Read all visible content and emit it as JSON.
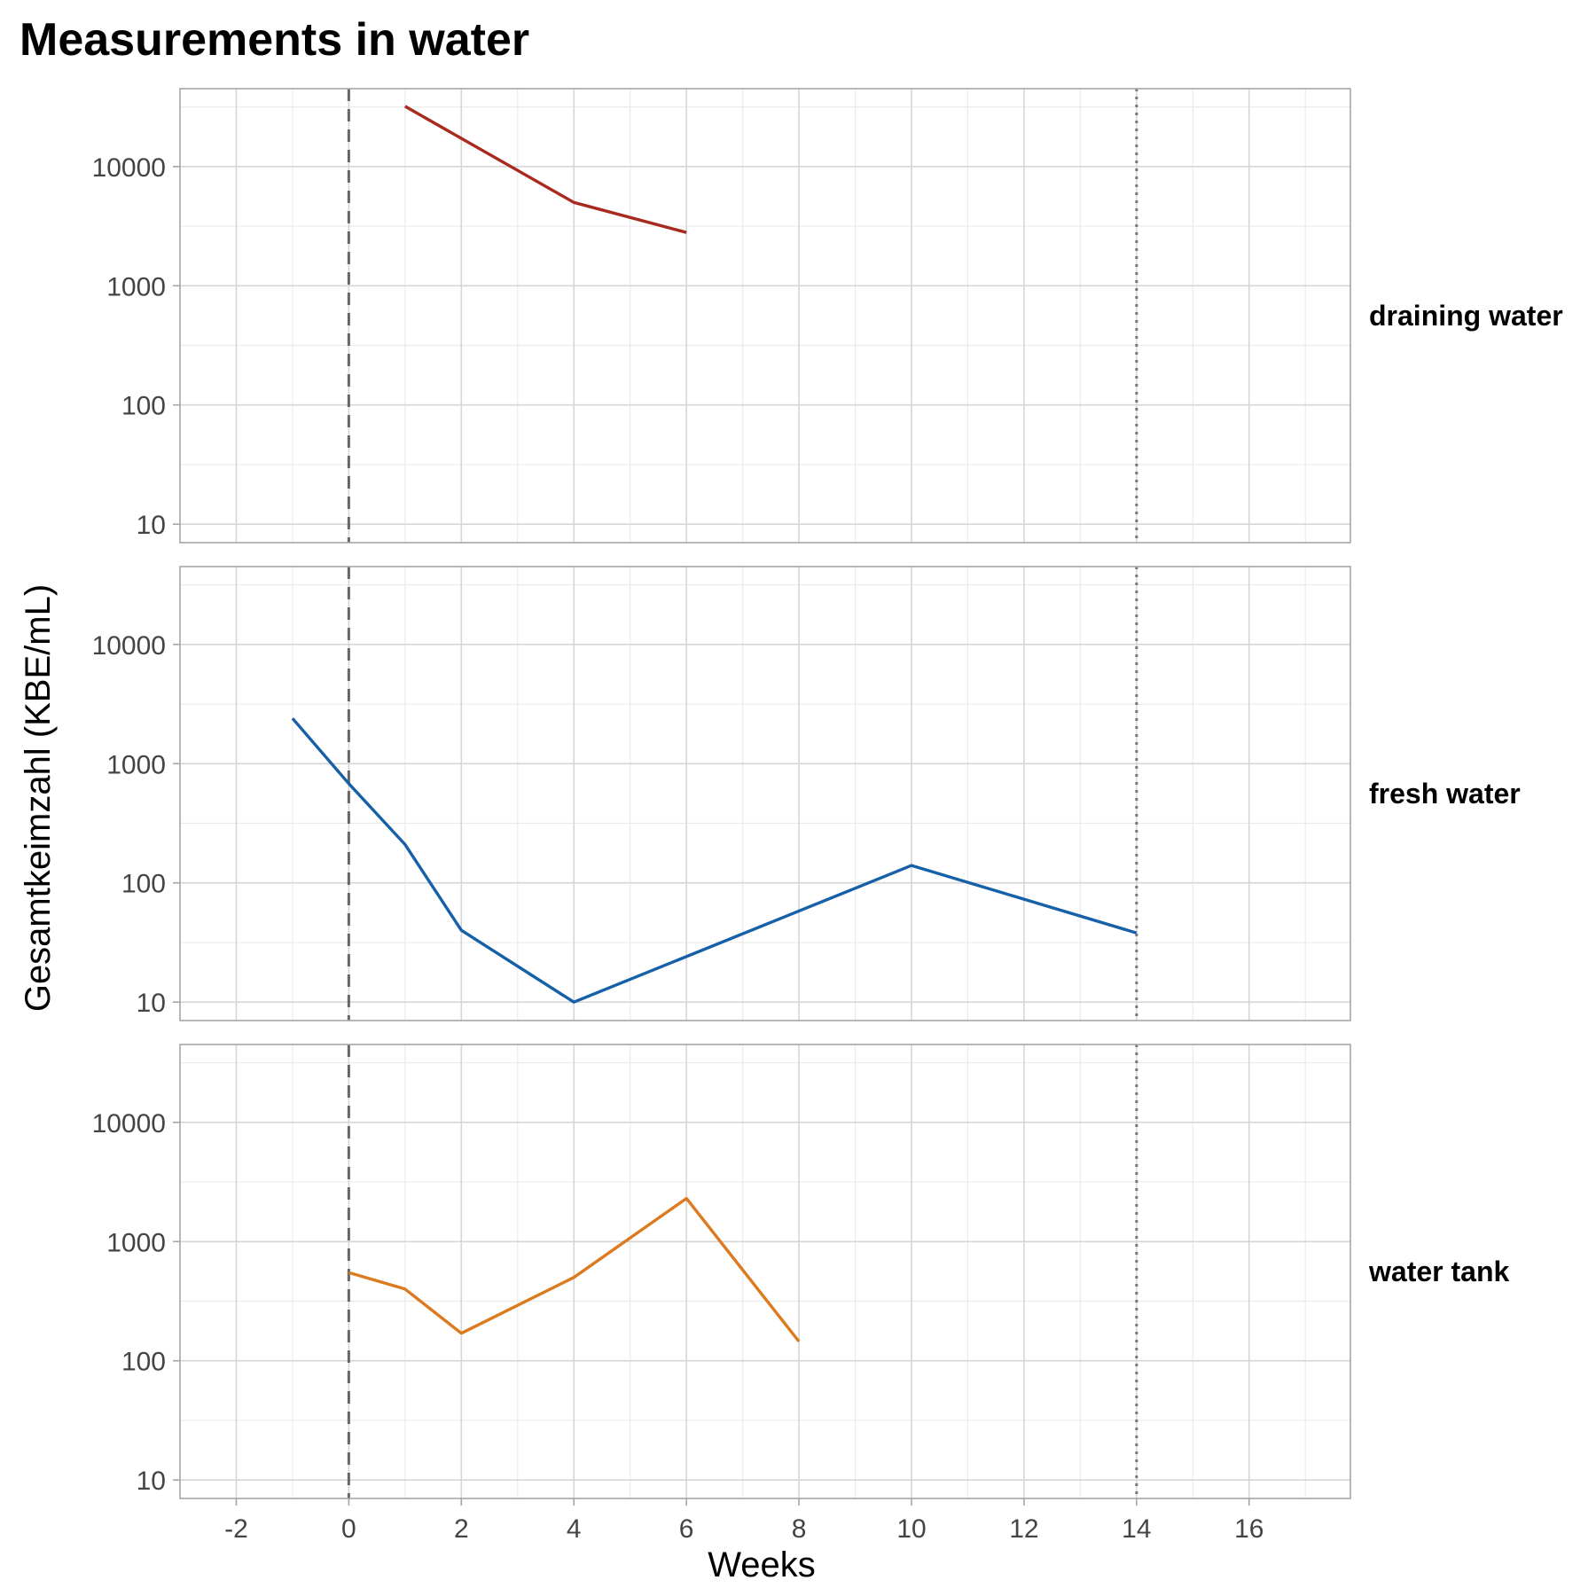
{
  "chart_data": {
    "type": "line",
    "title": "Measurements in water",
    "xlabel": "Weeks",
    "ylabel": "Gesamtkeimzahl (KBE/mL)",
    "x_scale": "linear",
    "y_scale": "log10",
    "xlim": [
      -3,
      17.8
    ],
    "ylim": [
      7,
      45000
    ],
    "x_ticks": [
      -2,
      0,
      2,
      4,
      6,
      8,
      10,
      12,
      14,
      16
    ],
    "x_tick_labels": [
      "-2",
      "0",
      "2",
      "4",
      "6",
      "8",
      "10",
      "12",
      "14",
      "16"
    ],
    "y_ticks": [
      10,
      100,
      1000,
      10000
    ],
    "y_tick_labels": [
      "10",
      "100",
      "1000",
      "10000"
    ],
    "grid": true,
    "facet_layout": "rows, strip labels on right",
    "reference_lines": [
      {
        "x": 0,
        "style": "dashed",
        "color": "#666666"
      },
      {
        "x": 14,
        "style": "dotted",
        "color": "#777777"
      }
    ],
    "panels": [
      {
        "label": "draining water",
        "color": "#A8291E",
        "points": [
          {
            "x": 1,
            "y": 32000
          },
          {
            "x": 4,
            "y": 5000
          },
          {
            "x": 6,
            "y": 2800
          }
        ]
      },
      {
        "label": "fresh water",
        "color": "#1660A8",
        "points": [
          {
            "x": -1,
            "y": 2400
          },
          {
            "x": 0,
            "y": 680
          },
          {
            "x": 1,
            "y": 210
          },
          {
            "x": 2,
            "y": 40
          },
          {
            "x": 4,
            "y": 10
          },
          {
            "x": 10,
            "y": 140
          },
          {
            "x": 14,
            "y": 38
          }
        ]
      },
      {
        "label": "water tank",
        "color": "#DC7A1F",
        "points": [
          {
            "x": 0,
            "y": 550
          },
          {
            "x": 1,
            "y": 400
          },
          {
            "x": 2,
            "y": 170
          },
          {
            "x": 4,
            "y": 500
          },
          {
            "x": 6,
            "y": 2300
          },
          {
            "x": 8,
            "y": 145
          }
        ]
      }
    ]
  }
}
